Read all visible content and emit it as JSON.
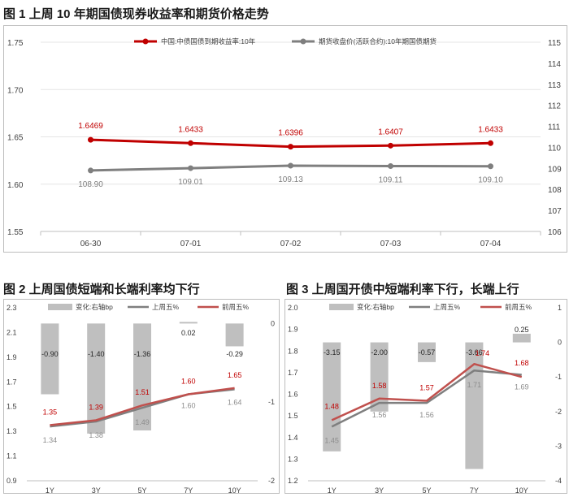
{
  "figure1": {
    "title": "图 1 上周 10 年期国债现券收益率和期货价格走势",
    "chart_data": {
      "type": "line",
      "categories": [
        "06-30",
        "07-01",
        "07-02",
        "07-03",
        "07-04"
      ],
      "series": [
        {
          "name": "中国:中债国债到期收益率:10年",
          "axis": "left",
          "color": "#c00000",
          "values": [
            1.6469,
            1.6433,
            1.6396,
            1.6407,
            1.6433
          ],
          "labels": [
            "1.6469",
            "1.6433",
            "1.6396",
            "1.6407",
            "1.6433"
          ]
        },
        {
          "name": "期货收盘价(活跃合约):10年期国债期货",
          "axis": "right",
          "color": "#7f7f7f",
          "values": [
            108.9,
            109.01,
            109.13,
            109.11,
            109.1
          ],
          "labels": [
            "108.90",
            "109.01",
            "109.13",
            "109.11",
            "109.10"
          ]
        }
      ],
      "left_axis": {
        "min": 1.55,
        "max": 1.75,
        "ticks": [
          "1.55",
          "1.60",
          "1.65",
          "1.70",
          "1.75"
        ]
      },
      "right_axis": {
        "min": 106,
        "max": 115,
        "ticks": [
          "106",
          "107",
          "108",
          "109",
          "110",
          "111",
          "112",
          "113",
          "114",
          "115"
        ]
      }
    }
  },
  "figure2": {
    "title": "图 2 上周国债短端和长端利率均下行",
    "chart_data": {
      "type": "bar",
      "categories": [
        "1Y",
        "3Y",
        "5Y",
        "7Y",
        "10Y"
      ],
      "bars": {
        "name": "变化:右轴bp",
        "color": "#bfbfbf",
        "values": [
          -0.9,
          -1.4,
          -1.36,
          0.02,
          -0.29
        ],
        "labels": [
          "-0.90",
          "-1.40",
          "-1.36",
          "0.02",
          "-0.29"
        ]
      },
      "lines": [
        {
          "name": "上周五%",
          "color": "#7f7f7f",
          "values": [
            1.34,
            1.38,
            1.49,
            1.6,
            1.64
          ],
          "labels": [
            "1.34",
            "1.38",
            "1.49",
            "1.60",
            "1.64"
          ]
        },
        {
          "name": "前周五%",
          "color": "#c0504d",
          "values": [
            1.35,
            1.39,
            1.51,
            1.6,
            1.65
          ],
          "labels": [
            "1.35",
            "1.39",
            "1.51",
            "1.60",
            "1.65"
          ]
        }
      ],
      "left_axis": {
        "min": 0.9,
        "max": 2.3,
        "ticks": [
          "0.9",
          "1.1",
          "1.3",
          "1.5",
          "1.7",
          "1.9",
          "2.1",
          "2.3"
        ]
      },
      "right_axis": {
        "min": -2,
        "max": 0.2,
        "ticks": [
          "-2",
          "-1",
          "0"
        ]
      }
    }
  },
  "figure3": {
    "title": "图 3 上周国开债中短端利率下行，长端上行",
    "chart_data": {
      "type": "bar",
      "categories": [
        "1Y",
        "3Y",
        "5Y",
        "7Y",
        "10Y"
      ],
      "bars": {
        "name": "变化:右轴bp",
        "color": "#bfbfbf",
        "values": [
          -3.15,
          -2.0,
          -0.57,
          -3.66,
          0.25
        ],
        "labels": [
          "-3.15",
          "-2.00",
          "-0.57",
          "-3.66",
          "0.25"
        ]
      },
      "lines": [
        {
          "name": "上周五%",
          "color": "#7f7f7f",
          "values": [
            1.45,
            1.56,
            1.56,
            1.71,
            1.69
          ],
          "labels": [
            "1.45",
            "1.56",
            "1.56",
            "1.71",
            "1.69"
          ]
        },
        {
          "name": "前周五%",
          "color": "#c0504d",
          "values": [
            1.48,
            1.58,
            1.57,
            1.74,
            1.68
          ],
          "labels": [
            "1.48",
            "1.58",
            "1.57",
            "1.74",
            "1.68"
          ]
        }
      ],
      "left_axis": {
        "min": 1.2,
        "max": 2.0,
        "ticks": [
          "1.2",
          "1.3",
          "1.4",
          "1.5",
          "1.6",
          "1.7",
          "1.8",
          "1.9",
          "2.0"
        ]
      },
      "right_axis": {
        "min": -4,
        "max": 1,
        "ticks": [
          "-4",
          "-3",
          "-2",
          "-1",
          "0",
          "1"
        ]
      }
    }
  }
}
